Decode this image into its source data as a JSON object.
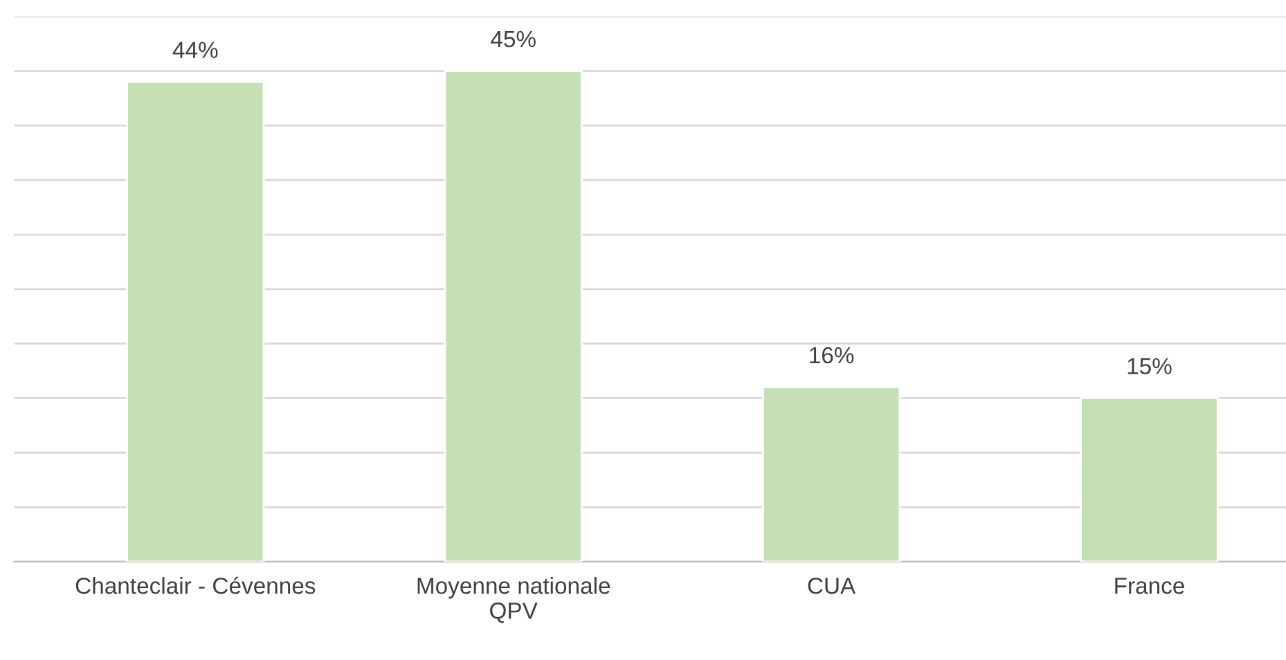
{
  "chart_data": {
    "type": "bar",
    "categories": [
      "Chanteclair - Cévennes",
      "Moyenne nationale\nQPV",
      "CUA",
      "France"
    ],
    "values": [
      44,
      45,
      16,
      15
    ],
    "value_labels": [
      "44%",
      "45%",
      "16%",
      "15%"
    ],
    "color": "#c5e0b4",
    "ylim": [
      0,
      50
    ],
    "yticks": [
      {
        "value": 0,
        "label": null
      },
      {
        "value": 5,
        "label": null
      },
      {
        "value": 10,
        "label": null
      },
      {
        "value": 15,
        "label": null
      },
      {
        "value": 20,
        "label": null
      },
      {
        "value": 25,
        "label": null
      },
      {
        "value": 30,
        "label": null
      },
      {
        "value": 35,
        "label": null
      },
      {
        "value": 40,
        "label": null
      },
      {
        "value": 45,
        "label": null
      },
      {
        "value": 50,
        "label": null
      }
    ],
    "tick_labels": "x",
    "grid": "y",
    "legend": false
  }
}
